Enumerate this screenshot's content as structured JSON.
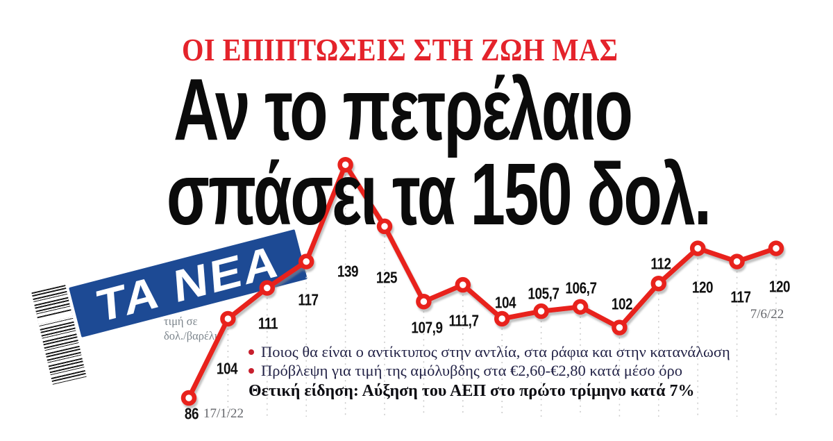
{
  "publication": {
    "kicker": "ΟΙ ΕΠΙΠΤΩΣΕΙΣ ΣΤΗ ΖΩΗ ΜΑΣ",
    "headline_line1": "Αν το πετρέλαιο",
    "headline_line2": "σπάσει τα 150 δολ.",
    "logo_text": "TA NEA"
  },
  "subpoints": {
    "bullets": [
      "Ποιος θα είναι ο αντίκτυπος στην αντλία, στα ράφια και στην κατανάλωση",
      "Πρόβλεψη για τιμή της αμόλυβδης στα €2,60-€2,80 κατά μέσο όρο"
    ],
    "highlight_lead": "Θετική είδηση:",
    "highlight_rest": " Αύξηση του ΑΕΠ στο πρώτο τρίμηνο κατά 7%"
  },
  "chart_data": {
    "type": "line",
    "title": "",
    "ylabel_line1": "τιμή σε",
    "ylabel_line2": "δολ./βαρέλι",
    "x_start_label": "17/1/22",
    "x_end_label": "7/6/22",
    "values": [
      86,
      104,
      111,
      117,
      139,
      125,
      107.9,
      111.7,
      104,
      105.7,
      106.7,
      102,
      112,
      120,
      117,
      120
    ],
    "yrange_implied": [
      86,
      139
    ],
    "grid": "vertical-dashed",
    "legend": "none",
    "points": [
      {
        "value": 86,
        "label": "86",
        "label_offset": [
          4,
          23
        ]
      },
      {
        "value": 104,
        "label": "104",
        "label_offset": [
          -1,
          72
        ]
      },
      {
        "value": 111,
        "label": "111",
        "label_offset": [
          1,
          51
        ]
      },
      {
        "value": 117,
        "label": "117",
        "label_offset": [
          3,
          55
        ]
      },
      {
        "value": 139,
        "label": "139",
        "label_offset": [
          3,
          154
        ]
      },
      {
        "value": 125,
        "label": "125",
        "label_offset": [
          3,
          74
        ]
      },
      {
        "value": 107.9,
        "label": "107,9",
        "label_offset": [
          5,
          38
        ]
      },
      {
        "value": 111.7,
        "label": "111,7",
        "label_offset": [
          1,
          52
        ]
      },
      {
        "value": 104,
        "label": "104",
        "label_offset": [
          5,
          -23
        ]
      },
      {
        "value": 105.7,
        "label": "105,7",
        "label_offset": [
          3,
          -25
        ]
      },
      {
        "value": 106.7,
        "label": "106,7",
        "label_offset": [
          1,
          -27
        ]
      },
      {
        "value": 102,
        "label": "102",
        "label_offset": [
          4,
          -34
        ]
      },
      {
        "value": 112,
        "label": "112",
        "label_offset": [
          3,
          -28
        ]
      },
      {
        "value": 120,
        "label": "120",
        "label_offset": [
          7,
          56
        ]
      },
      {
        "value": 117,
        "label": "117",
        "label_offset": [
          5,
          51
        ]
      },
      {
        "value": 120,
        "label": "120",
        "label_offset": [
          5,
          55
        ]
      }
    ]
  },
  "colors": {
    "kicker_red": "#e4232b",
    "line_red": "#e8211f",
    "logo_blue": "#1d4a94",
    "body_ink": "#232347",
    "muted_gray": "#63656a",
    "grid_gray": "#c9c9c9"
  }
}
